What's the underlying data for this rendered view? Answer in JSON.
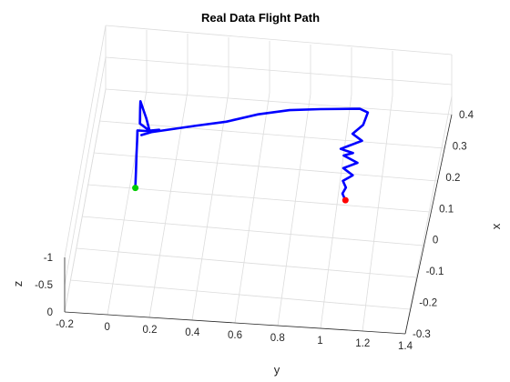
{
  "chart_data": {
    "type": "line",
    "title": "Real Data Flight Path",
    "xlabel": "x",
    "ylabel": "y",
    "zlabel": "z",
    "x_ticks": [
      "0.4",
      "0.3",
      "0.2",
      "0.1",
      "0",
      "-0.1",
      "-0.2",
      "-0.3"
    ],
    "y_ticks": [
      "-0.2",
      "0",
      "0.2",
      "0.4",
      "0.6",
      "0.8",
      "1",
      "1.2",
      "1.4"
    ],
    "z_ticks": [
      "-1",
      "-0.5",
      "0"
    ],
    "xlim": [
      -0.3,
      0.4
    ],
    "ylim": [
      -0.2,
      1.4
    ],
    "zlim": [
      -1.1,
      0
    ],
    "grid": true,
    "colors": {
      "path": "#0000ff",
      "start_marker": "#00cc00",
      "end_marker": "#ff0000"
    },
    "series": [
      {
        "points": [
          [
            0.1,
            0.02,
            0.0
          ],
          [
            0.11,
            0.02,
            -0.25
          ],
          [
            0.12,
            0.02,
            -0.5
          ],
          [
            0.13,
            0.02,
            -0.7
          ],
          [
            0.135,
            0.02,
            -0.85
          ],
          [
            0.13,
            0.06,
            -0.88
          ],
          [
            0.14,
            0.12,
            -0.86
          ],
          [
            0.13,
            0.04,
            -0.8
          ],
          [
            0.15,
            0.08,
            -0.75
          ],
          [
            0.14,
            0.03,
            -0.95
          ],
          [
            0.145,
            0.03,
            -1.2
          ],
          [
            0.15,
            0.03,
            -1.3
          ],
          [
            0.14,
            0.06,
            -1.05
          ],
          [
            0.13,
            0.08,
            -0.86
          ],
          [
            0.16,
            0.28,
            -0.86
          ],
          [
            0.18,
            0.42,
            -0.86
          ],
          [
            0.21,
            0.56,
            -0.86
          ],
          [
            0.23,
            0.7,
            -0.86
          ],
          [
            0.24,
            0.84,
            -0.86
          ],
          [
            0.25,
            1.02,
            -0.86
          ],
          [
            0.24,
            1.06,
            -0.86
          ],
          [
            0.2,
            1.05,
            -0.86
          ],
          [
            0.17,
            1.01,
            -0.86
          ],
          [
            0.15,
            1.06,
            -0.86
          ],
          [
            0.12,
            0.97,
            -0.86
          ],
          [
            0.11,
            1.03,
            -0.86
          ],
          [
            0.1,
            0.99,
            -0.86
          ],
          [
            0.08,
            1.06,
            -0.86
          ],
          [
            0.06,
            1.0,
            -0.86
          ],
          [
            0.04,
            1.05,
            -0.86
          ],
          [
            0.02,
            1.01,
            -0.86
          ],
          [
            0.0,
            1.03,
            -0.86
          ],
          [
            -0.02,
            1.02,
            -0.86
          ],
          [
            -0.04,
            1.04,
            -0.86
          ]
        ]
      }
    ],
    "start_point": [
      0.1,
      0.02,
      0.0
    ],
    "end_point": [
      -0.04,
      1.04,
      -0.86
    ]
  }
}
